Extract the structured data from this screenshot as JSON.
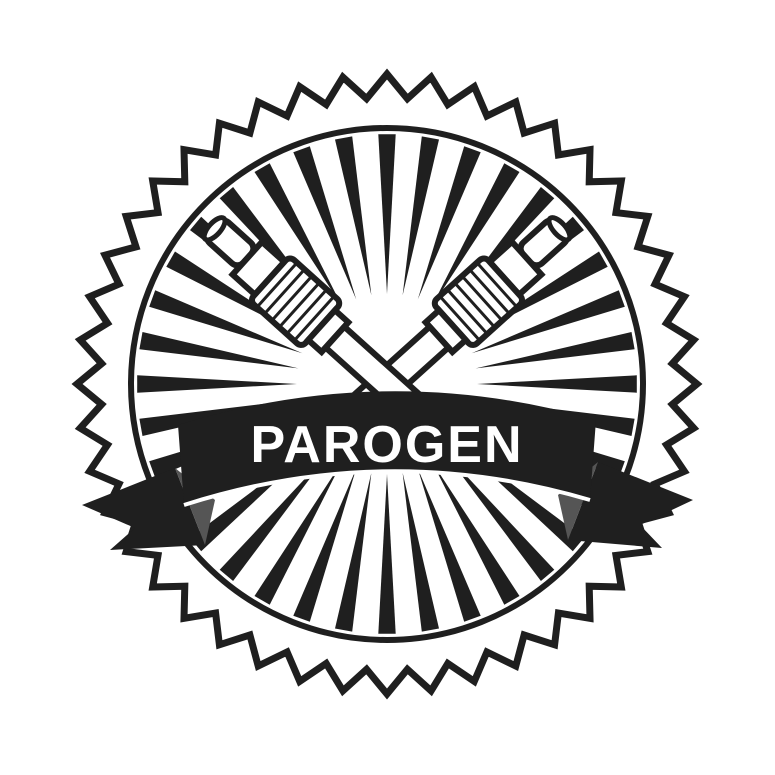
{
  "badge": {
    "brand_name": "PAROGEN"
  },
  "colors": {
    "ink": "#1f1f1f",
    "paper": "#ffffff"
  },
  "icons": [
    "rosette-badge",
    "crossed-vape-pens-icon",
    "sunburst-rays",
    "ribbon-banner"
  ]
}
